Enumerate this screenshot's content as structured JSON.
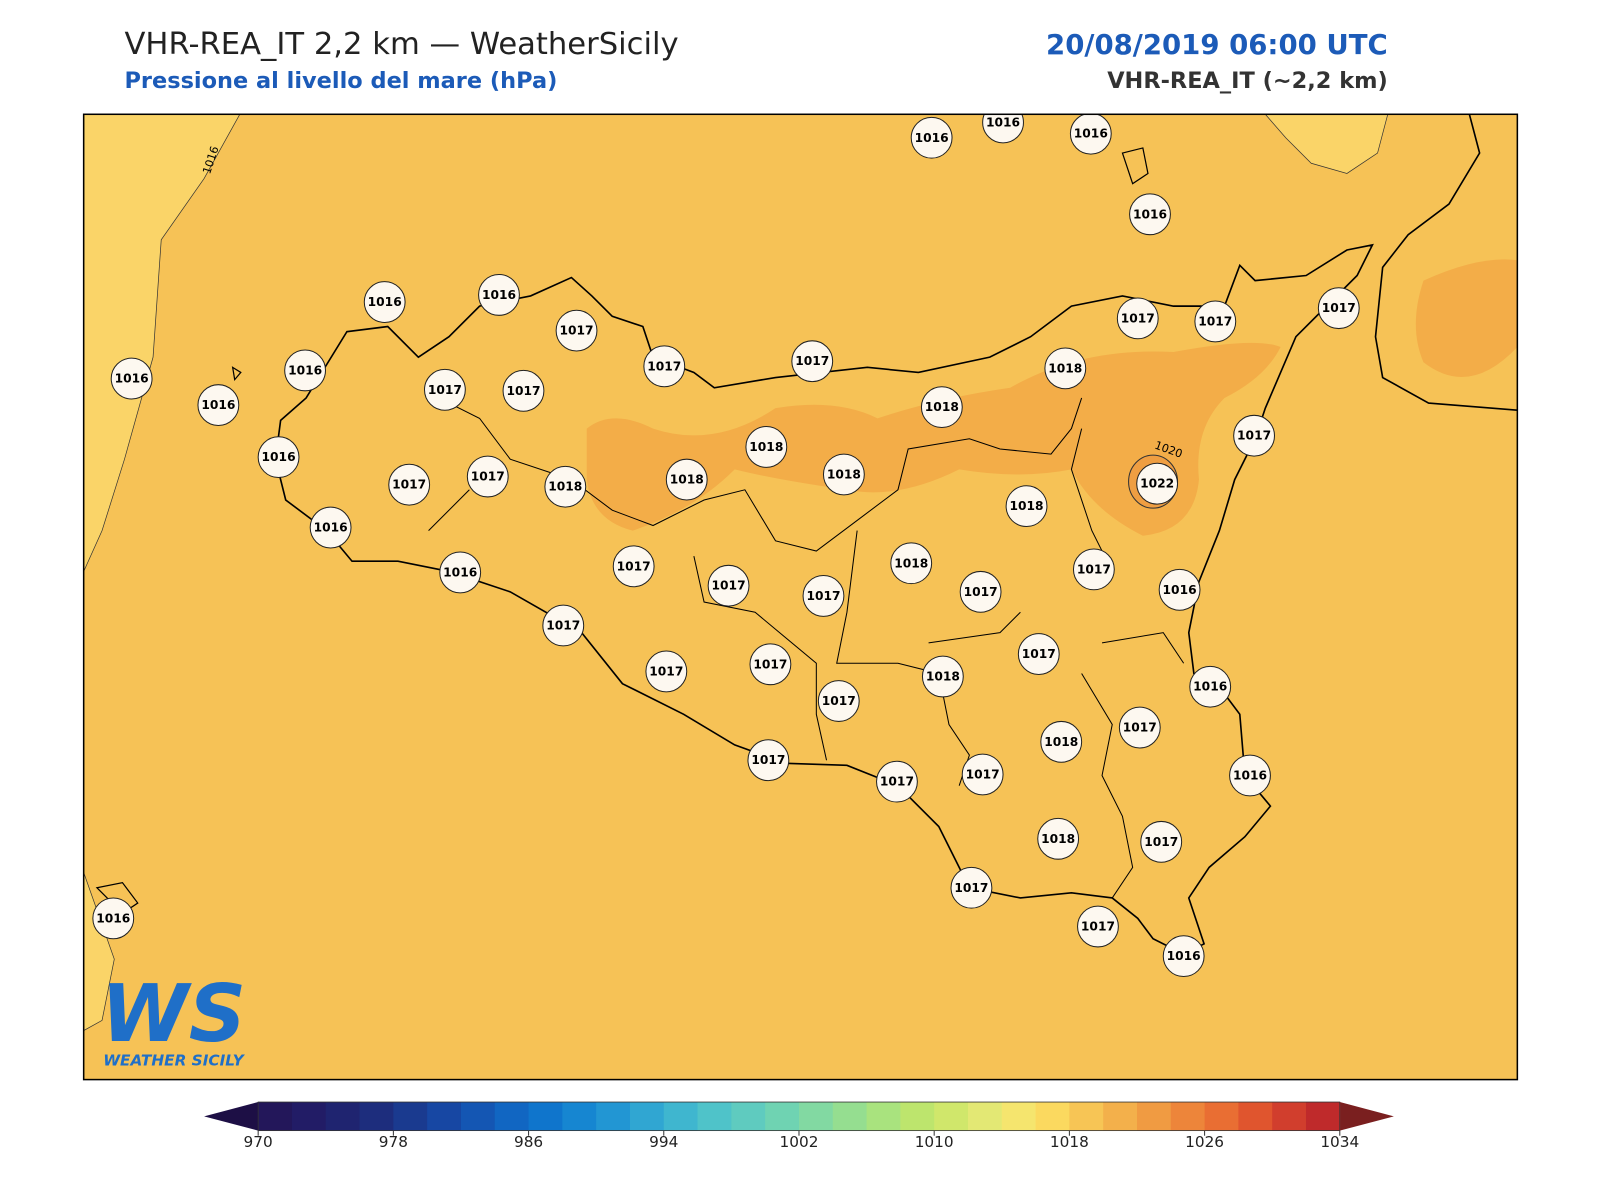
{
  "header": {
    "title": "VHR-REA_IT 2,2 km — WeatherSicily",
    "subtitle": "Pressione al livello del mare (hPa)",
    "datetime": "20/08/2019 06:00 UTC",
    "model": "VHR-REA_IT (~2,2 km)"
  },
  "map": {
    "contour_labels": [
      1016,
      1020
    ],
    "stations": [
      1016,
      1016,
      1016,
      1016,
      1016,
      1016,
      1017,
      1017,
      1017,
      1017,
      1017,
      1017,
      1016,
      1016,
      1016,
      1017,
      1017,
      1018,
      1018,
      1018,
      1017,
      1016,
      1017,
      1017,
      1018,
      1018,
      1018,
      1022,
      1018,
      1016,
      1016,
      1017,
      1017,
      1017,
      1018,
      1017,
      1017,
      1016,
      1017,
      1017,
      1017,
      1017,
      1018,
      1017,
      1016,
      1018,
      1017,
      1017,
      1017,
      1017,
      1016,
      1018,
      1017,
      1017,
      1017,
      1016,
      1016
    ]
  },
  "colorbar": {
    "ticks": [
      970,
      978,
      986,
      994,
      1002,
      1010,
      1018,
      1026,
      1034
    ],
    "colors": [
      "#23175a",
      "#221c66",
      "#1f2470",
      "#1d2d7d",
      "#1a3a8f",
      "#1747a3",
      "#1456b3",
      "#1166c2",
      "#0f75cc",
      "#1686d1",
      "#2296d3",
      "#30a6d2",
      "#3fb6cf",
      "#4fc3c9",
      "#5fcbbf",
      "#6fd3b2",
      "#82d9a2",
      "#95de90",
      "#a9e37e",
      "#bde56d",
      "#d0e76b",
      "#e3e874",
      "#f5e56e",
      "#fbd95f",
      "#f7c555",
      "#f3b04b",
      "#f09b42",
      "#ed853a",
      "#e96e33",
      "#e0552e",
      "#d13e2d",
      "#bf2a2b"
    ]
  },
  "logo": {
    "mark": "WS",
    "name": "WEATHER SICILY"
  }
}
